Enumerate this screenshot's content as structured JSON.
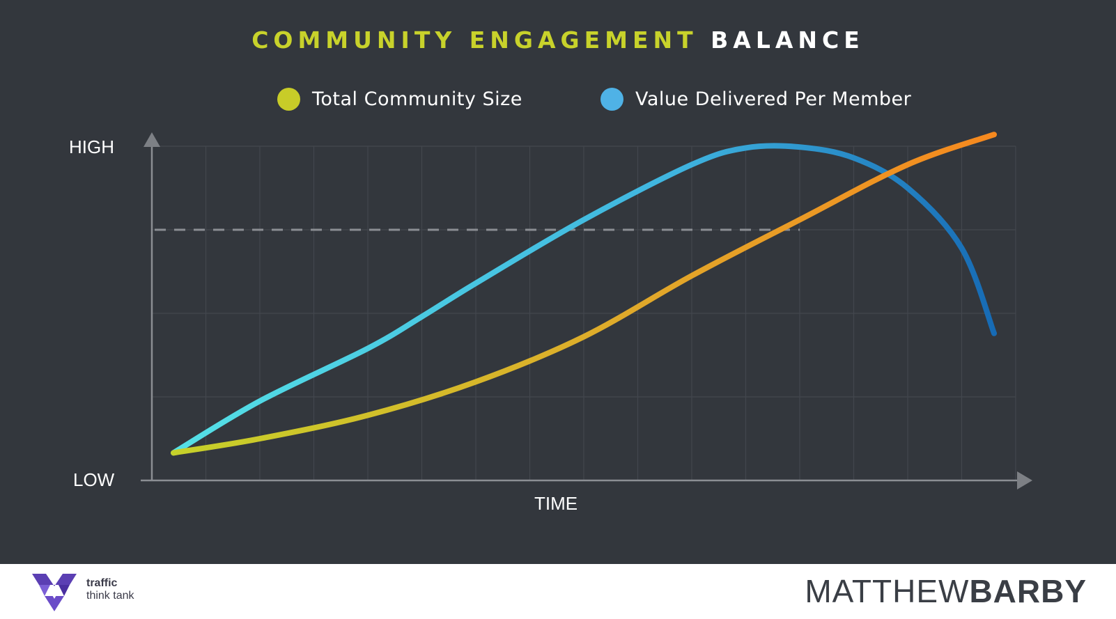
{
  "title": {
    "part1": "COMMUNITY ENGAGEMENT",
    "part2": "BALANCE"
  },
  "legend": [
    {
      "label": "Total Community Size",
      "color": "#c8cc28"
    },
    {
      "label": "Value Delivered Per Member",
      "color": "#4fb2e6"
    }
  ],
  "chart_data": {
    "type": "line",
    "title": "COMMUNITY ENGAGEMENT BALANCE",
    "xlabel": "TIME",
    "ylabel": "",
    "y_tick_labels": [
      "LOW",
      "HIGH"
    ],
    "xlim": [
      0,
      16
    ],
    "ylim": [
      0,
      4
    ],
    "grid": true,
    "legend_position": "top",
    "reference_line": {
      "y": 3,
      "x_end": 12,
      "style": "dashed"
    },
    "series": [
      {
        "name": "Total Community Size",
        "colors": [
          "#c6d12a",
          "#e0a92a",
          "#f7871e"
        ],
        "x": [
          0.4,
          2,
          4,
          6,
          8,
          10,
          12,
          14,
          15.6
        ],
        "y": [
          0.33,
          0.5,
          0.78,
          1.18,
          1.72,
          2.45,
          3.12,
          3.78,
          4.14
        ]
      },
      {
        "name": "Value Delivered Per Member",
        "colors": [
          "#55e0e6",
          "#3fb4df",
          "#1466b2"
        ],
        "x": [
          0.4,
          2,
          4,
          5,
          6,
          8,
          10,
          11,
          12,
          13,
          14,
          15,
          15.6
        ],
        "y": [
          0.33,
          0.95,
          1.58,
          1.96,
          2.36,
          3.12,
          3.78,
          3.98,
          3.99,
          3.86,
          3.5,
          2.78,
          1.76
        ]
      }
    ]
  },
  "footer": {
    "logo_word1": "traffic",
    "logo_word2": "think tank",
    "brand_thin": "MATTHEW",
    "brand_bold": "BARBY"
  }
}
